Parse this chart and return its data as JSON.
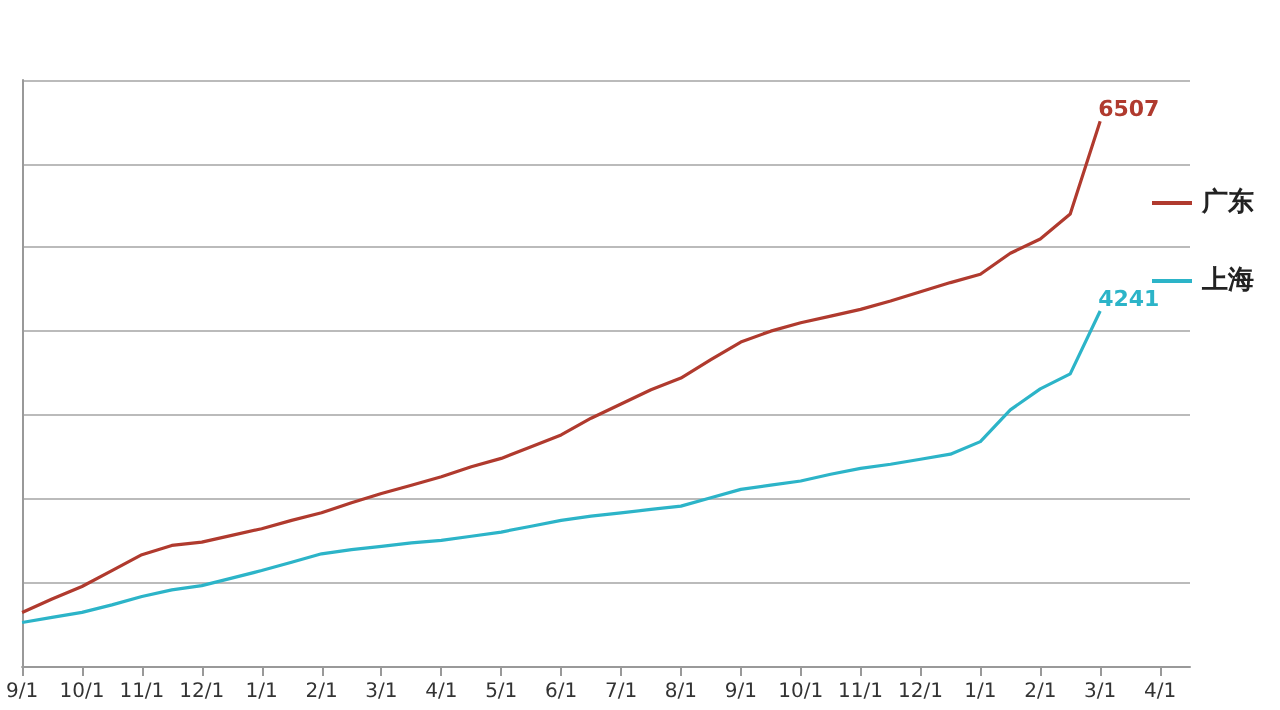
{
  "chart_data": {
    "type": "line",
    "categories": [
      "9/1",
      null,
      "10/1",
      null,
      "11/1",
      null,
      "12/1",
      null,
      "1/1",
      null,
      "2/1",
      null,
      "3/1",
      null,
      "4/1",
      null,
      "5/1",
      null,
      "6/1",
      null,
      "7/1",
      null,
      "8/1",
      null,
      "9/1",
      null,
      "10/1",
      null,
      "11/1",
      null,
      "12/1",
      null,
      "1/1",
      null,
      "2/1",
      null,
      "3/1",
      null,
      "4/1",
      null
    ],
    "ylim": [
      0,
      7000
    ],
    "yticks": [
      {
        "value": 0,
        "label": null
      },
      {
        "value": 1000,
        "label": null
      },
      {
        "value": 2000,
        "label": null
      },
      {
        "value": 3000,
        "label": null
      },
      {
        "value": 4000,
        "label": null
      },
      {
        "value": 5000,
        "label": null
      },
      {
        "value": 6000,
        "label": null
      },
      {
        "value": 7000,
        "label": null
      }
    ],
    "grid": "y",
    "legend": "right",
    "marker": "none",
    "line_style": "solid",
    "series": [
      {
        "name": "广东",
        "color": "#b03a2e",
        "values": [
          640,
          800,
          950,
          1140,
          1330,
          1440,
          1480,
          1560,
          1640,
          1740,
          1830,
          1950,
          2060,
          2160,
          2260,
          2380,
          2480,
          2620,
          2760,
          2960,
          3130,
          3300,
          3440,
          3660,
          3870,
          4000,
          4100,
          4180,
          4260,
          4360,
          4470,
          4580,
          4680,
          4930,
          5100,
          5400,
          6507,
          null,
          null,
          null
        ],
        "value_labels": [
          null,
          null,
          null,
          null,
          null,
          null,
          null,
          null,
          null,
          null,
          null,
          null,
          null,
          null,
          null,
          null,
          null,
          null,
          null,
          null,
          null,
          null,
          null,
          null,
          null,
          null,
          null,
          null,
          null,
          null,
          null,
          null,
          null,
          null,
          null,
          null,
          "6507",
          null,
          null,
          null
        ]
      },
      {
        "name": "上海",
        "color": "#2cb4c8",
        "values": [
          520,
          580,
          640,
          730,
          830,
          910,
          960,
          1050,
          1140,
          1240,
          1340,
          1390,
          1430,
          1470,
          1500,
          1550,
          1600,
          1670,
          1740,
          1790,
          1830,
          1870,
          1910,
          2010,
          2110,
          2160,
          2210,
          2290,
          2360,
          2410,
          2470,
          2530,
          2680,
          3060,
          3310,
          3490,
          4241,
          null,
          null,
          null
        ],
        "value_labels": [
          null,
          null,
          null,
          null,
          null,
          null,
          null,
          null,
          null,
          null,
          null,
          null,
          null,
          null,
          null,
          null,
          null,
          null,
          null,
          null,
          null,
          null,
          null,
          null,
          null,
          null,
          null,
          null,
          null,
          null,
          null,
          null,
          null,
          null,
          null,
          null,
          "4241",
          null,
          null,
          null
        ]
      }
    ]
  }
}
